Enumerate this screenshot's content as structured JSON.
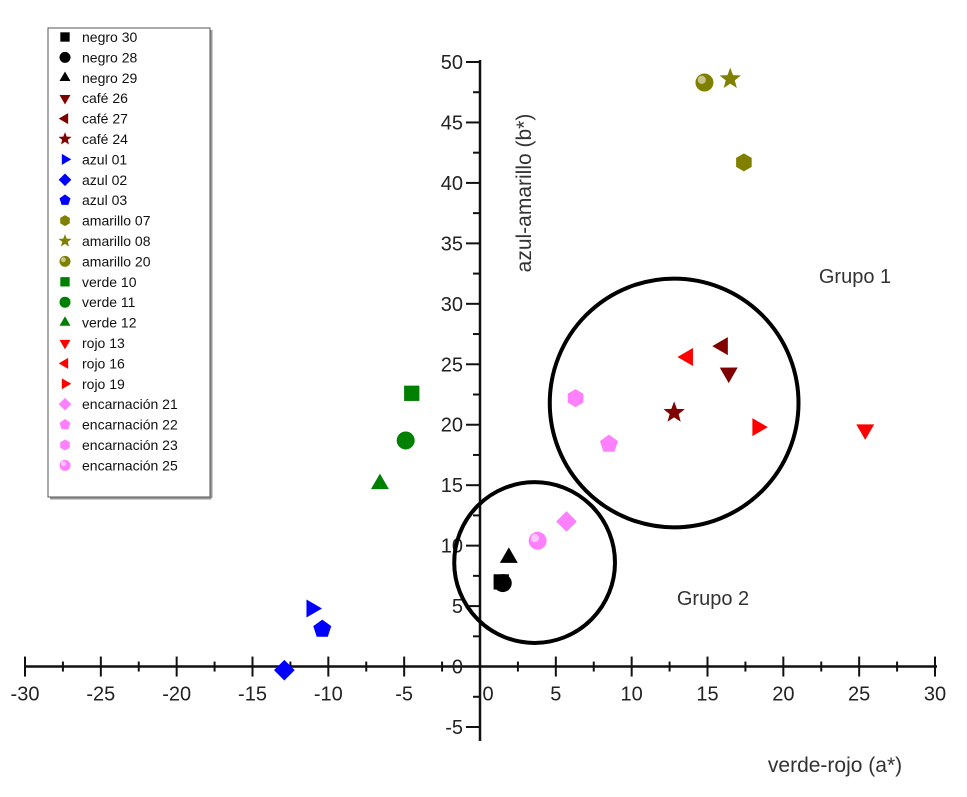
{
  "chart_data": {
    "type": "scatter",
    "title": "",
    "xlabel": "verde-rojo (a*)",
    "ylabel": "azul-amarillo (b*)",
    "xlim": [
      -30,
      30
    ],
    "ylim": [
      -5,
      50
    ],
    "x_ticks": [
      -30,
      -25,
      -20,
      -15,
      -10,
      -5,
      0,
      5,
      10,
      15,
      20,
      25,
      30
    ],
    "x_tick_labels": [
      "-30",
      "-25",
      "-20",
      "-15",
      "-10",
      "-5",
      "0",
      "5",
      "10",
      "15",
      "20",
      "25",
      "30"
    ],
    "y_ticks": [
      -5,
      0,
      5,
      10,
      15,
      20,
      25,
      30,
      35,
      40,
      45,
      50
    ],
    "y_tick_labels": [
      "-5",
      "0",
      "5",
      "10",
      "15",
      "20",
      "25",
      "30",
      "35",
      "40",
      "45",
      "50"
    ],
    "legend_position": "top-left",
    "series": [
      {
        "name": "negro 30",
        "color": "#000000",
        "marker": "square",
        "points": [
          [
            1.4,
            7.0
          ]
        ]
      },
      {
        "name": "negro 28",
        "color": "#000000",
        "marker": "circle",
        "points": [
          [
            1.5,
            6.9
          ]
        ]
      },
      {
        "name": "negro 29",
        "color": "#000000",
        "marker": "triangle-up",
        "points": [
          [
            1.9,
            9.0
          ]
        ]
      },
      {
        "name": "café 26",
        "color": "#800000",
        "marker": "triangle-down",
        "points": [
          [
            16.4,
            24.3
          ]
        ]
      },
      {
        "name": "café 27",
        "color": "#800000",
        "marker": "triangle-left",
        "points": [
          [
            16.0,
            26.5
          ]
        ]
      },
      {
        "name": "café 24",
        "color": "#800000",
        "marker": "star",
        "points": [
          [
            12.8,
            21.0
          ]
        ]
      },
      {
        "name": "azul 01",
        "color": "#0000ff",
        "marker": "triangle-right",
        "points": [
          [
            -11.1,
            4.8
          ]
        ]
      },
      {
        "name": "azul 02",
        "color": "#0000ff",
        "marker": "diamond",
        "points": [
          [
            -12.9,
            -0.3
          ]
        ]
      },
      {
        "name": "azul 03",
        "color": "#0000ff",
        "marker": "pentagon",
        "points": [
          [
            -10.4,
            3.1
          ]
        ]
      },
      {
        "name": "amarillo 07",
        "color": "#808000",
        "marker": "hexagon",
        "points": [
          [
            17.4,
            41.7
          ]
        ]
      },
      {
        "name": "amarillo 08",
        "color": "#808000",
        "marker": "star",
        "points": [
          [
            16.5,
            48.6
          ]
        ]
      },
      {
        "name": "amarillo 20",
        "color": "#808000",
        "marker": "sphere",
        "points": [
          [
            14.8,
            48.3
          ]
        ]
      },
      {
        "name": "verde 10",
        "color": "#008000",
        "marker": "square",
        "points": [
          [
            -4.5,
            22.6
          ]
        ]
      },
      {
        "name": "verde 11",
        "color": "#008000",
        "marker": "circle",
        "points": [
          [
            -4.9,
            18.7
          ]
        ]
      },
      {
        "name": "verde 12",
        "color": "#008000",
        "marker": "triangle-up",
        "points": [
          [
            -6.6,
            15.1
          ]
        ]
      },
      {
        "name": "rojo 13",
        "color": "#ff0000",
        "marker": "triangle-down",
        "points": [
          [
            25.4,
            19.6
          ]
        ]
      },
      {
        "name": "rojo 16",
        "color": "#ff0000",
        "marker": "triangle-left",
        "points": [
          [
            13.7,
            25.6
          ]
        ]
      },
      {
        "name": "rojo 19",
        "color": "#ff0000",
        "marker": "triangle-right",
        "points": [
          [
            18.3,
            19.8
          ]
        ]
      },
      {
        "name": "encarnación 21",
        "color": "#ff80ff",
        "marker": "diamond",
        "points": [
          [
            5.7,
            12.0
          ]
        ]
      },
      {
        "name": "encarnación 22",
        "color": "#ff80ff",
        "marker": "pentagon",
        "points": [
          [
            8.5,
            18.4
          ]
        ]
      },
      {
        "name": "encarnación 23",
        "color": "#ff80ff",
        "marker": "hexagon",
        "points": [
          [
            6.3,
            22.2
          ]
        ]
      },
      {
        "name": "encarnación 25",
        "color": "#ff80ff",
        "marker": "sphere",
        "points": [
          [
            3.8,
            10.4
          ]
        ]
      }
    ],
    "annotations": [
      {
        "text": "Grupo 1",
        "shape": "circle",
        "center": [
          12.8,
          21.8
        ],
        "radius_x": 8.2
      },
      {
        "text": "Grupo 2",
        "shape": "circle",
        "center": [
          3.6,
          8.6
        ],
        "radius_x": 5.3
      }
    ]
  }
}
